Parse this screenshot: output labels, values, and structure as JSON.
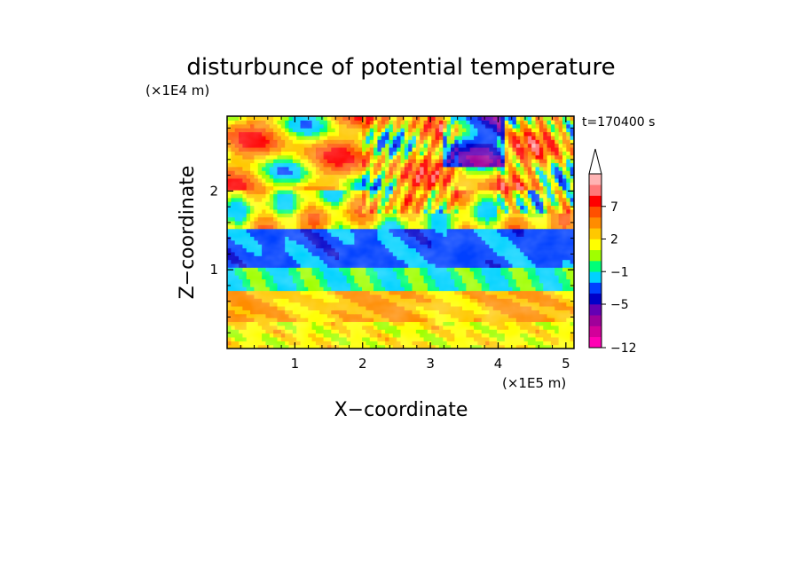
{
  "chart_data": {
    "type": "heatmap",
    "title": "disturbunce of potential temperature",
    "xlabel": "X−coordinate",
    "ylabel": "Z−coordinate",
    "x_unit": "(×1E5 m)",
    "y_unit": "(×1E4 m)",
    "time_label": "t=170400 s",
    "xlim": [
      0,
      5.12
    ],
    "ylim": [
      0,
      2.95
    ],
    "x_ticks": [
      "1",
      "2",
      "3",
      "4",
      "5"
    ],
    "y_ticks": [
      "1",
      "2"
    ],
    "colorbar": {
      "colors": [
        "#ff00b4",
        "#d2009a",
        "#a0009a",
        "#6400b4",
        "#0000c8",
        "#0040ff",
        "#00d2ff",
        "#00ff78",
        "#a0ff00",
        "#ffff00",
        "#ffc800",
        "#ff8c00",
        "#ff5000",
        "#ff0000",
        "#ff7878",
        "#ffb4b4"
      ],
      "extend_color": "#ffffff",
      "tick_labels": [
        "−12",
        "−5",
        "−1",
        "2",
        "7"
      ]
    },
    "bands": [
      {
        "z_range": [
          0.0,
          0.35
        ],
        "dominant": "yellow-green (−1 to 2)"
      },
      {
        "z_range": [
          0.35,
          0.75
        ],
        "dominant": "yellow-orange (0 to 3)"
      },
      {
        "z_range": [
          0.75,
          1.05
        ],
        "dominant": "cyan (−2 to −1)"
      },
      {
        "z_range": [
          1.05,
          1.5
        ],
        "dominant": "blue (−5 to −3)"
      },
      {
        "z_range": [
          1.5,
          2.0
        ],
        "dominant": "mixed (−3 to 5)"
      },
      {
        "z_range": [
          2.0,
          2.95
        ],
        "dominant": "orange/red cells (2 to 7) with blue cells"
      }
    ]
  }
}
